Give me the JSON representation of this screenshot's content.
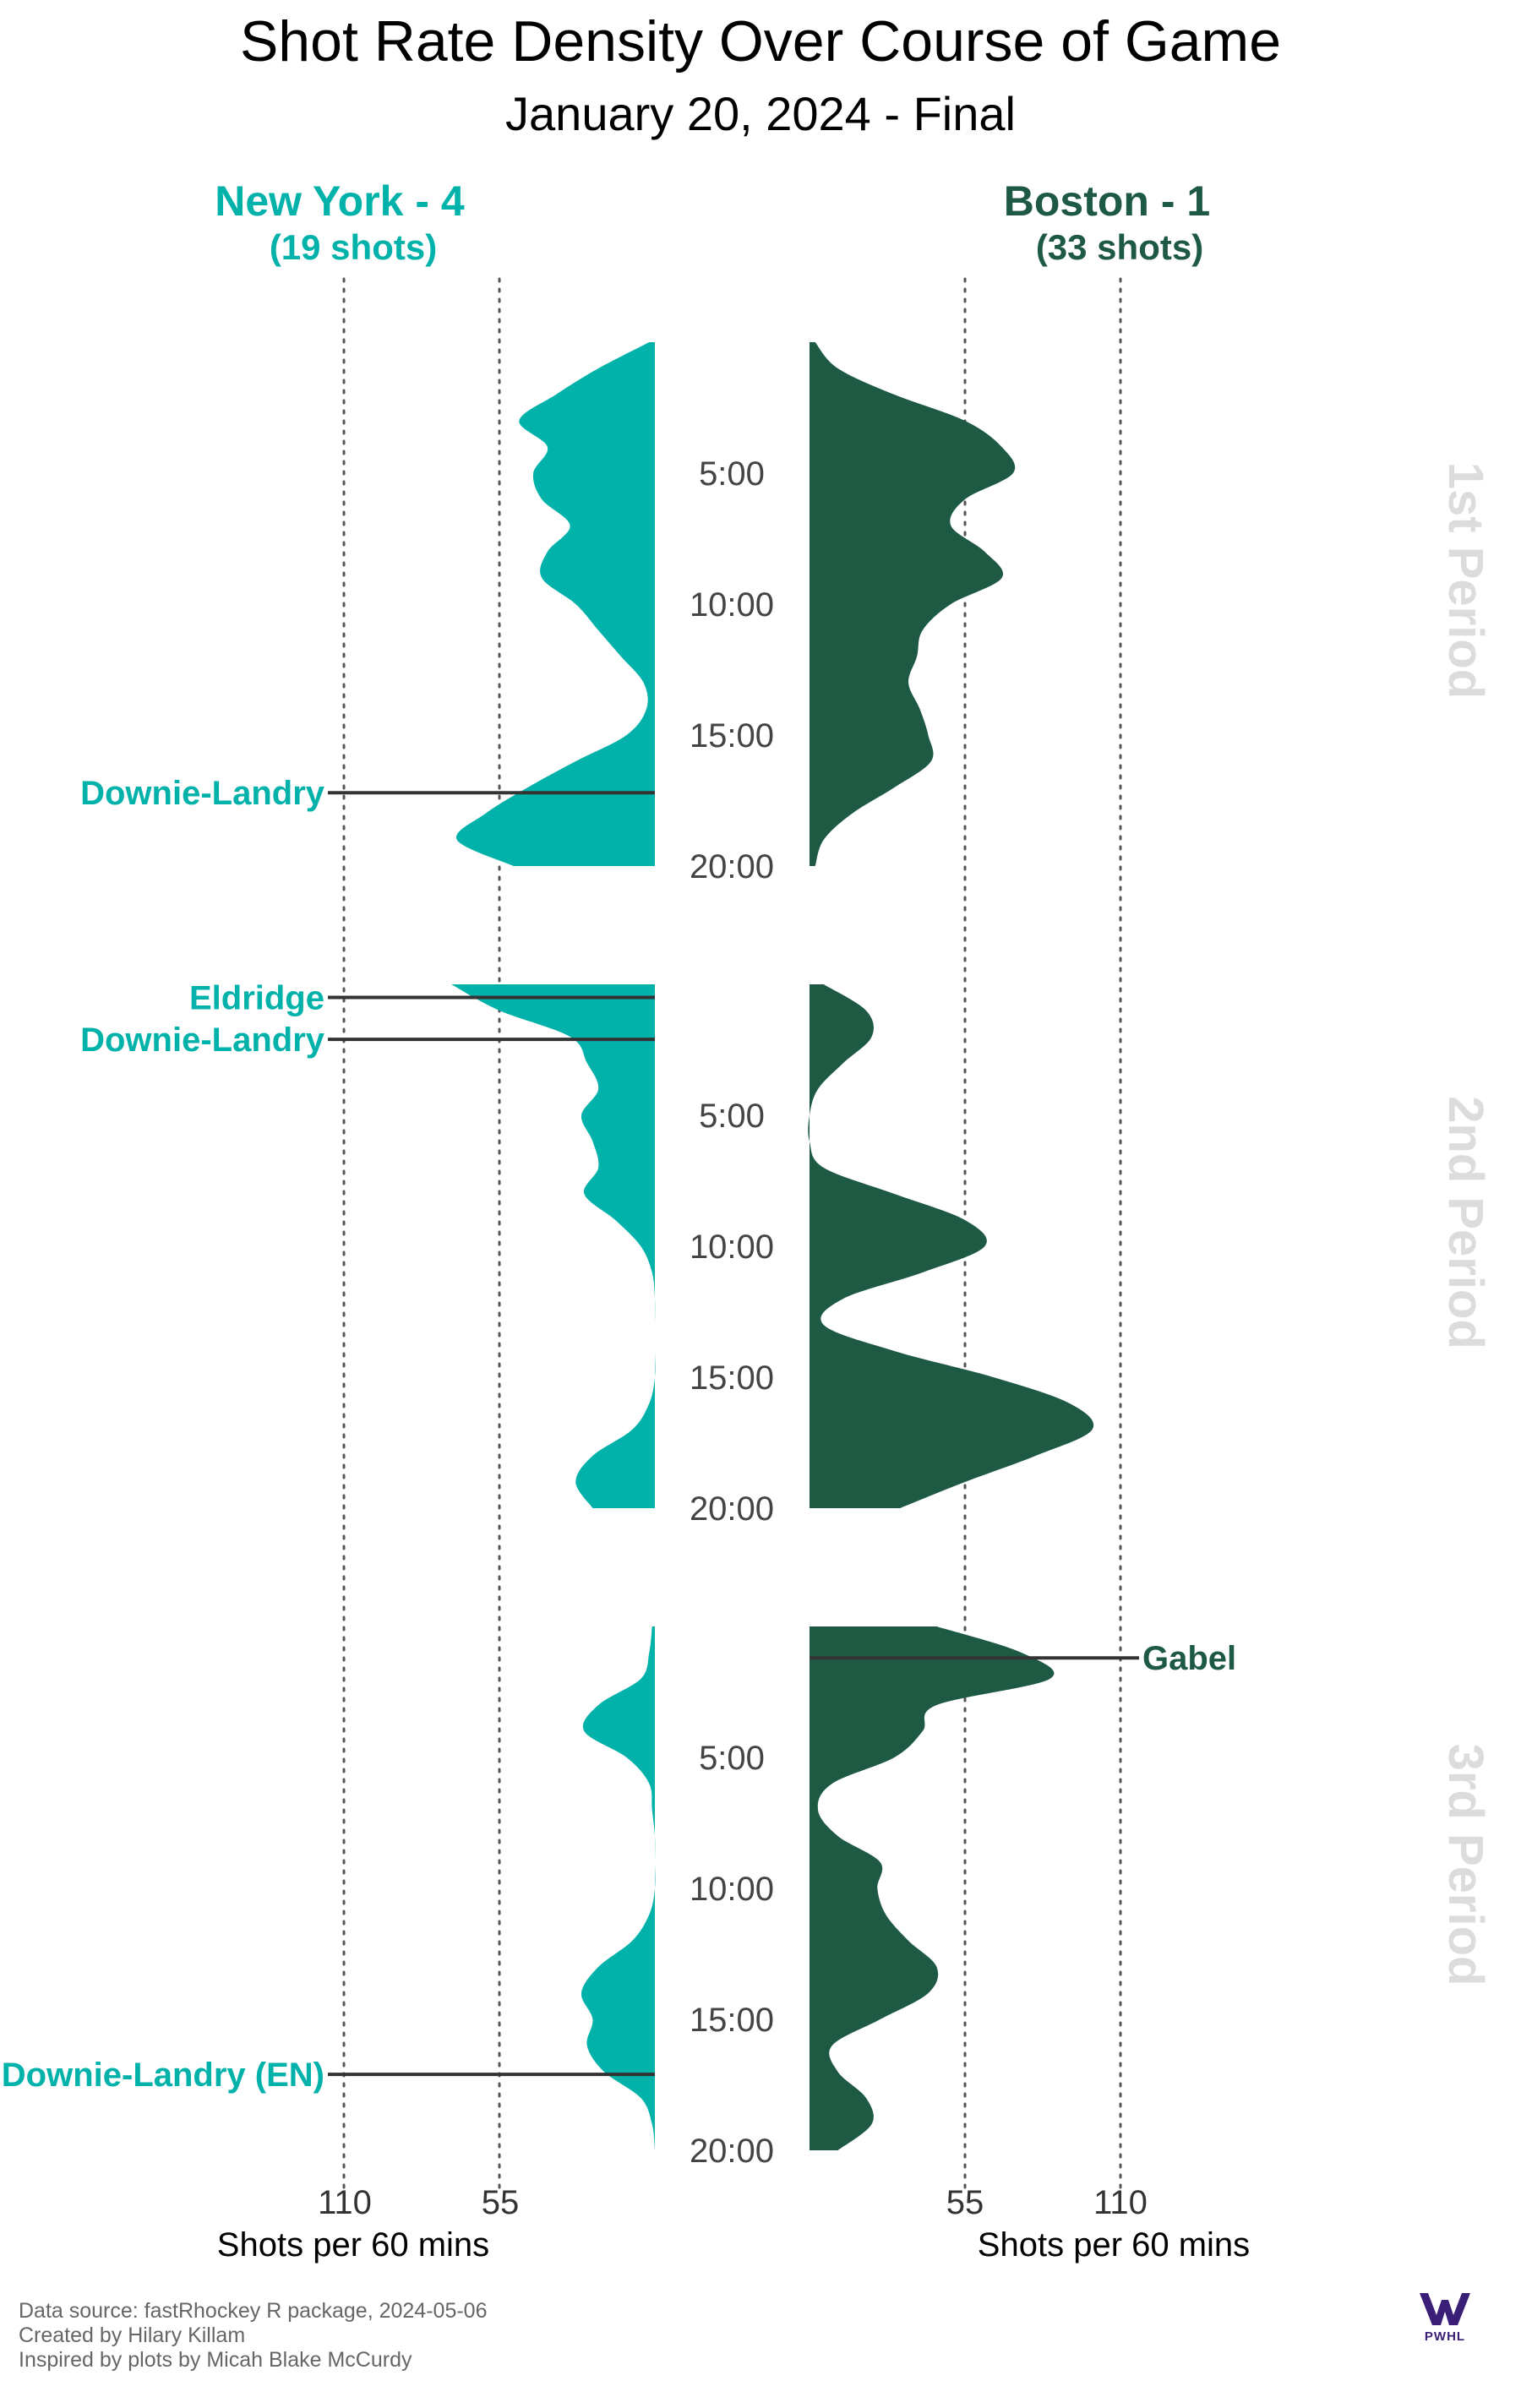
{
  "chart_data": {
    "type": "area",
    "title": "Shot Rate Density Over Course of Game",
    "subtitle": "January 20, 2024 - Final",
    "x_axis": {
      "ticks": [
        "110",
        "55"
      ],
      "ticks_right": [
        "55",
        "110"
      ],
      "label": "Shots per 60 mins",
      "range": [
        0,
        110
      ]
    },
    "time_labels": [
      "5:00",
      "10:00",
      "15:00",
      "20:00"
    ],
    "teams": [
      {
        "name": "New York - 4",
        "shots": "(19 shots)",
        "color": "#00b2a9",
        "side": "left"
      },
      {
        "name": "Boston - 1",
        "shots": "(33 shots)",
        "color": "#1e5a43",
        "side": "right"
      }
    ],
    "periods": [
      {
        "label": "1st Period",
        "minutes": [
          0,
          1,
          2,
          3,
          4,
          5,
          6,
          7,
          8,
          9,
          10,
          11,
          12,
          13,
          14,
          15,
          16,
          17,
          18,
          19,
          20
        ],
        "new_york": [
          2,
          20,
          35,
          48,
          38,
          43,
          40,
          30,
          38,
          40,
          28,
          20,
          12,
          4,
          3,
          10,
          28,
          45,
          60,
          70,
          50
        ],
        "boston": [
          2,
          10,
          30,
          55,
          68,
          72,
          55,
          50,
          62,
          68,
          50,
          40,
          38,
          35,
          39,
          42,
          43,
          30,
          15,
          5,
          2
        ],
        "goals": [
          {
            "team": "new_york",
            "player": "Downie-Landry",
            "minute": 17.2
          }
        ]
      },
      {
        "label": "2nd Period",
        "minutes": [
          0,
          1,
          2,
          3,
          4,
          5,
          6,
          7,
          8,
          9,
          10,
          11,
          12,
          13,
          14,
          15,
          16,
          17,
          18,
          19,
          20
        ],
        "new_york": [
          72,
          55,
          30,
          24,
          20,
          26,
          22,
          20,
          25,
          14,
          5,
          1,
          0,
          0,
          0,
          0,
          2,
          8,
          22,
          28,
          22
        ],
        "boston": [
          5,
          20,
          22,
          12,
          3,
          0,
          0,
          5,
          30,
          55,
          62,
          40,
          12,
          5,
          30,
          65,
          92,
          100,
          80,
          55,
          32
        ],
        "goals": [
          {
            "team": "new_york",
            "player": "Eldridge",
            "minute": 0.5
          },
          {
            "team": "new_york",
            "player": "Downie-Landry",
            "minute": 2.1
          }
        ]
      },
      {
        "label": "3rd Period",
        "minutes": [
          0,
          1,
          2,
          3,
          4,
          5,
          6,
          7,
          8,
          9,
          10,
          11,
          12,
          13,
          14,
          15,
          16,
          17,
          18,
          19,
          20
        ],
        "new_york": [
          1,
          2,
          5,
          20,
          25,
          10,
          2,
          1,
          0,
          0,
          0,
          2,
          8,
          20,
          26,
          22,
          24,
          18,
          5,
          1,
          0
        ],
        "boston": [
          45,
          75,
          85,
          45,
          40,
          30,
          8,
          3,
          10,
          25,
          24,
          27,
          35,
          45,
          42,
          25,
          8,
          10,
          20,
          22,
          10
        ],
        "goals": [
          {
            "team": "boston",
            "player": "Gabel",
            "minute": 1.2
          },
          {
            "team": "new_york",
            "player": "Downie-Landry (EN)",
            "minute": 17.1
          }
        ]
      }
    ]
  },
  "caption": {
    "line1": "Data source: fastRhockey R package, 2024-05-06",
    "line2": "Created by Hilary Killam",
    "line3": "Inspired by plots by Micah Blake McCurdy"
  },
  "logo": {
    "name": "pwhl-logo",
    "text": "PWHL",
    "color": "#3b1e78"
  }
}
